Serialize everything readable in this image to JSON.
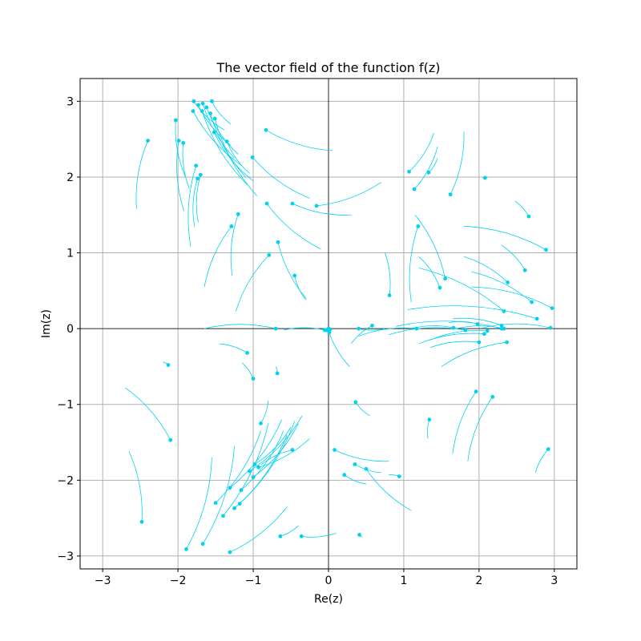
{
  "chart_data": {
    "type": "vector-field-streamlines",
    "title": "The vector field of the function f(z)",
    "xlabel": "Re(z)",
    "ylabel": "Im(z)",
    "xlim": [
      -3.3,
      3.3
    ],
    "ylim": [
      -3.17,
      3.3
    ],
    "xticks": [
      -3,
      -2,
      -1,
      0,
      1,
      2,
      3
    ],
    "yticks": [
      -3,
      -2,
      -1,
      0,
      1,
      2,
      3
    ],
    "xtick_labels": [
      "−3",
      "−2",
      "−1",
      "0",
      "1",
      "2",
      "3"
    ],
    "ytick_labels": [
      "−3",
      "−2",
      "−1",
      "0",
      "1",
      "2",
      "3"
    ],
    "grid": true,
    "zero_lines": true,
    "colors": {
      "stream": "#00d2f0",
      "grid": "#b0b0b0",
      "zero_line": "#000000"
    },
    "streamlines": [
      {
        "start": [
          -1.79,
          3.0
        ],
        "end": [
          -1.38,
          2.62
        ]
      },
      {
        "start": [
          -1.73,
          2.95
        ],
        "end": [
          -1.3,
          2.42
        ]
      },
      {
        "start": [
          -1.67,
          2.97
        ],
        "end": [
          -1.25,
          2.25
        ]
      },
      {
        "start": [
          -1.55,
          3.0
        ],
        "end": [
          -1.3,
          2.7
        ]
      },
      {
        "start": [
          -1.8,
          2.87
        ],
        "end": [
          -1.15,
          2.15
        ]
      },
      {
        "start": [
          -1.68,
          2.87
        ],
        "end": [
          -1.08,
          1.9
        ]
      },
      {
        "start": [
          -1.62,
          2.92
        ],
        "end": [
          -1.2,
          2.3
        ]
      },
      {
        "start": [
          -1.57,
          2.84
        ],
        "end": [
          -1.1,
          2.0
        ]
      },
      {
        "start": [
          -1.51,
          2.77
        ],
        "end": [
          -0.95,
          1.75
        ]
      },
      {
        "start": [
          -1.52,
          2.59
        ],
        "end": [
          -1.0,
          1.95
        ]
      },
      {
        "start": [
          -1.35,
          2.47
        ],
        "end": [
          -1.05,
          2.05
        ]
      },
      {
        "start": [
          -2.4,
          2.48
        ],
        "end": [
          -2.55,
          1.58
        ]
      },
      {
        "start": [
          -1.99,
          2.48
        ],
        "end": [
          -1.92,
          1.55
        ]
      },
      {
        "start": [
          -1.93,
          2.45
        ],
        "end": [
          -1.85,
          1.85
        ]
      },
      {
        "start": [
          -2.03,
          2.75
        ],
        "end": [
          -1.9,
          2.0
        ]
      },
      {
        "start": [
          -1.76,
          2.15
        ],
        "end": [
          -1.83,
          1.08
        ]
      },
      {
        "start": [
          -1.74,
          1.98
        ],
        "end": [
          -1.78,
          1.35
        ]
      },
      {
        "start": [
          -1.7,
          2.03
        ],
        "end": [
          -1.73,
          1.4
        ]
      },
      {
        "start": [
          -1.29,
          1.35
        ],
        "end": [
          -1.65,
          0.55
        ]
      },
      {
        "start": [
          -1.2,
          1.51
        ],
        "end": [
          -1.28,
          0.7
        ]
      },
      {
        "start": [
          -1.01,
          2.26
        ],
        "end": [
          -0.25,
          1.72
        ]
      },
      {
        "start": [
          -0.83,
          2.62
        ],
        "end": [
          0.05,
          2.35
        ]
      },
      {
        "start": [
          -0.82,
          1.65
        ],
        "end": [
          -0.1,
          1.05
        ]
      },
      {
        "start": [
          -0.48,
          1.65
        ],
        "end": [
          0.3,
          1.5
        ]
      },
      {
        "start": [
          -0.16,
          1.62
        ],
        "end": [
          0.7,
          1.93
        ]
      },
      {
        "start": [
          -0.67,
          1.14
        ],
        "end": [
          -0.3,
          0.4
        ]
      },
      {
        "start": [
          -0.79,
          0.97
        ],
        "end": [
          -1.23,
          0.23
        ]
      },
      {
        "start": [
          -0.45,
          0.7
        ],
        "end": [
          -0.3,
          0.38
        ]
      },
      {
        "start": [
          -0.7,
          0.0
        ],
        "end": [
          -1.65,
          0.0
        ]
      },
      {
        "start": [
          -0.05,
          -0.02
        ],
        "end": [
          -0.6,
          -0.02
        ]
      },
      {
        "start": [
          0.0,
          -0.02
        ],
        "end": [
          0.28,
          -0.5
        ]
      },
      {
        "start": [
          0.4,
          0.0
        ],
        "end": [
          0.75,
          0.0
        ]
      },
      {
        "start": [
          0.58,
          0.04
        ],
        "end": [
          0.3,
          -0.2
        ]
      },
      {
        "start": [
          -1.08,
          -0.32
        ],
        "end": [
          -1.45,
          -0.2
        ]
      },
      {
        "start": [
          -1.0,
          -0.66
        ],
        "end": [
          -1.15,
          -0.45
        ]
      },
      {
        "start": [
          -0.68,
          -0.59
        ],
        "end": [
          -0.7,
          -0.5
        ]
      },
      {
        "start": [
          -2.13,
          -0.48
        ],
        "end": [
          -2.2,
          -0.44
        ]
      },
      {
        "start": [
          -2.1,
          -1.47
        ],
        "end": [
          -2.7,
          -0.78
        ]
      },
      {
        "start": [
          -2.48,
          -2.55
        ],
        "end": [
          -2.65,
          -1.62
        ]
      },
      {
        "start": [
          -1.89,
          -2.91
        ],
        "end": [
          -1.55,
          -1.7
        ]
      },
      {
        "start": [
          -1.67,
          -2.84
        ],
        "end": [
          -1.25,
          -1.55
        ]
      },
      {
        "start": [
          -1.31,
          -2.95
        ],
        "end": [
          -0.55,
          -2.35
        ]
      },
      {
        "start": [
          -1.5,
          -2.3
        ],
        "end": [
          -0.9,
          -1.35
        ]
      },
      {
        "start": [
          -1.4,
          -2.47
        ],
        "end": [
          -0.8,
          -1.25
        ]
      },
      {
        "start": [
          -1.31,
          -2.1
        ],
        "end": [
          -0.62,
          -1.2
        ]
      },
      {
        "start": [
          -1.25,
          -2.37
        ],
        "end": [
          -0.55,
          -1.4
        ]
      },
      {
        "start": [
          -1.18,
          -2.31
        ],
        "end": [
          -0.45,
          -1.22
        ]
      },
      {
        "start": [
          -1.16,
          -2.13
        ],
        "end": [
          -0.6,
          -1.35
        ]
      },
      {
        "start": [
          -1.0,
          -1.96
        ],
        "end": [
          -0.4,
          -1.25
        ]
      },
      {
        "start": [
          -1.05,
          -1.88
        ],
        "end": [
          -0.35,
          -1.15
        ]
      },
      {
        "start": [
          -0.98,
          -1.79
        ],
        "end": [
          -0.5,
          -1.3
        ]
      },
      {
        "start": [
          -0.93,
          -1.83
        ],
        "end": [
          -0.25,
          -1.45
        ]
      },
      {
        "start": [
          -0.9,
          -1.25
        ],
        "end": [
          -0.8,
          -0.95
        ]
      },
      {
        "start": [
          -0.48,
          -1.6
        ],
        "end": [
          -0.9,
          -1.8
        ]
      },
      {
        "start": [
          -0.64,
          -2.74
        ],
        "end": [
          -0.4,
          -2.6
        ]
      },
      {
        "start": [
          -0.36,
          -2.74
        ],
        "end": [
          0.1,
          -2.7
        ]
      },
      {
        "start": [
          0.41,
          -2.72
        ],
        "end": [
          0.45,
          -2.75
        ]
      },
      {
        "start": [
          0.08,
          -1.6
        ],
        "end": [
          0.8,
          -1.75
        ]
      },
      {
        "start": [
          0.21,
          -1.93
        ],
        "end": [
          0.5,
          -2.05
        ]
      },
      {
        "start": [
          0.35,
          -1.79
        ],
        "end": [
          0.7,
          -1.9
        ]
      },
      {
        "start": [
          0.5,
          -1.85
        ],
        "end": [
          1.1,
          -2.4
        ]
      },
      {
        "start": [
          0.94,
          -1.95
        ],
        "end": [
          0.8,
          -1.93
        ]
      },
      {
        "start": [
          0.36,
          -0.97
        ],
        "end": [
          0.55,
          -1.15
        ]
      },
      {
        "start": [
          1.34,
          -1.2
        ],
        "end": [
          1.32,
          -1.45
        ]
      },
      {
        "start": [
          1.96,
          -0.83
        ],
        "end": [
          1.65,
          -1.65
        ]
      },
      {
        "start": [
          2.18,
          -0.9
        ],
        "end": [
          1.85,
          -1.75
        ]
      },
      {
        "start": [
          2.92,
          -1.59
        ],
        "end": [
          2.75,
          -1.9
        ]
      },
      {
        "start": [
          1.07,
          2.07
        ],
        "end": [
          1.4,
          2.58
        ]
      },
      {
        "start": [
          1.14,
          1.84
        ],
        "end": [
          1.45,
          2.4
        ]
      },
      {
        "start": [
          1.33,
          2.06
        ],
        "end": [
          1.45,
          2.25
        ]
      },
      {
        "start": [
          1.62,
          1.77
        ],
        "end": [
          1.8,
          2.6
        ]
      },
      {
        "start": [
          2.08,
          1.99
        ],
        "end": [
          2.05,
          1.98
        ]
      },
      {
        "start": [
          1.19,
          1.35
        ],
        "end": [
          1.1,
          0.35
        ]
      },
      {
        "start": [
          0.81,
          0.44
        ],
        "end": [
          0.75,
          1.0
        ]
      },
      {
        "start": [
          1.48,
          0.54
        ],
        "end": [
          1.2,
          0.95
        ]
      },
      {
        "start": [
          1.55,
          0.66
        ],
        "end": [
          1.15,
          1.5
        ]
      },
      {
        "start": [
          2.66,
          1.48
        ],
        "end": [
          2.48,
          1.68
        ]
      },
      {
        "start": [
          2.89,
          1.04
        ],
        "end": [
          1.8,
          1.35
        ]
      },
      {
        "start": [
          2.61,
          0.77
        ],
        "end": [
          2.3,
          1.1
        ]
      },
      {
        "start": [
          2.38,
          0.61
        ],
        "end": [
          1.8,
          0.95
        ]
      },
      {
        "start": [
          2.7,
          0.35
        ],
        "end": [
          1.9,
          0.75
        ]
      },
      {
        "start": [
          2.33,
          0.23
        ],
        "end": [
          1.2,
          0.8
        ]
      },
      {
        "start": [
          2.97,
          0.27
        ],
        "end": [
          1.9,
          0.55
        ]
      },
      {
        "start": [
          2.77,
          0.13
        ],
        "end": [
          1.05,
          0.25
        ]
      },
      {
        "start": [
          2.3,
          0.04
        ],
        "end": [
          1.65,
          0.13
        ]
      },
      {
        "start": [
          2.3,
          0.0
        ],
        "end": [
          0.9,
          0.03
        ]
      },
      {
        "start": [
          2.33,
          0.0
        ],
        "end": [
          1.7,
          0.0
        ]
      },
      {
        "start": [
          1.98,
          0.06
        ],
        "end": [
          1.6,
          0.08
        ]
      },
      {
        "start": [
          1.82,
          -0.02
        ],
        "end": [
          0.8,
          -0.08
        ]
      },
      {
        "start": [
          1.66,
          0.01
        ],
        "end": [
          1.1,
          0.0
        ]
      },
      {
        "start": [
          1.17,
          0.0
        ],
        "end": [
          0.4,
          -0.1
        ]
      },
      {
        "start": [
          2.95,
          0.01
        ],
        "end": [
          2.05,
          0.01
        ]
      },
      {
        "start": [
          2.11,
          -0.03
        ],
        "end": [
          1.35,
          -0.15
        ]
      },
      {
        "start": [
          2.07,
          -0.07
        ],
        "end": [
          1.2,
          -0.2
        ]
      },
      {
        "start": [
          2.0,
          -0.18
        ],
        "end": [
          1.35,
          -0.25
        ]
      },
      {
        "start": [
          2.37,
          -0.18
        ],
        "end": [
          1.5,
          -0.5
        ]
      }
    ],
    "points": [
      [
        0.0,
        0.0
      ],
      [
        -0.03,
        -0.02
      ],
      [
        0.01,
        -0.05
      ],
      [
        0.02,
        -0.01
      ]
    ]
  }
}
